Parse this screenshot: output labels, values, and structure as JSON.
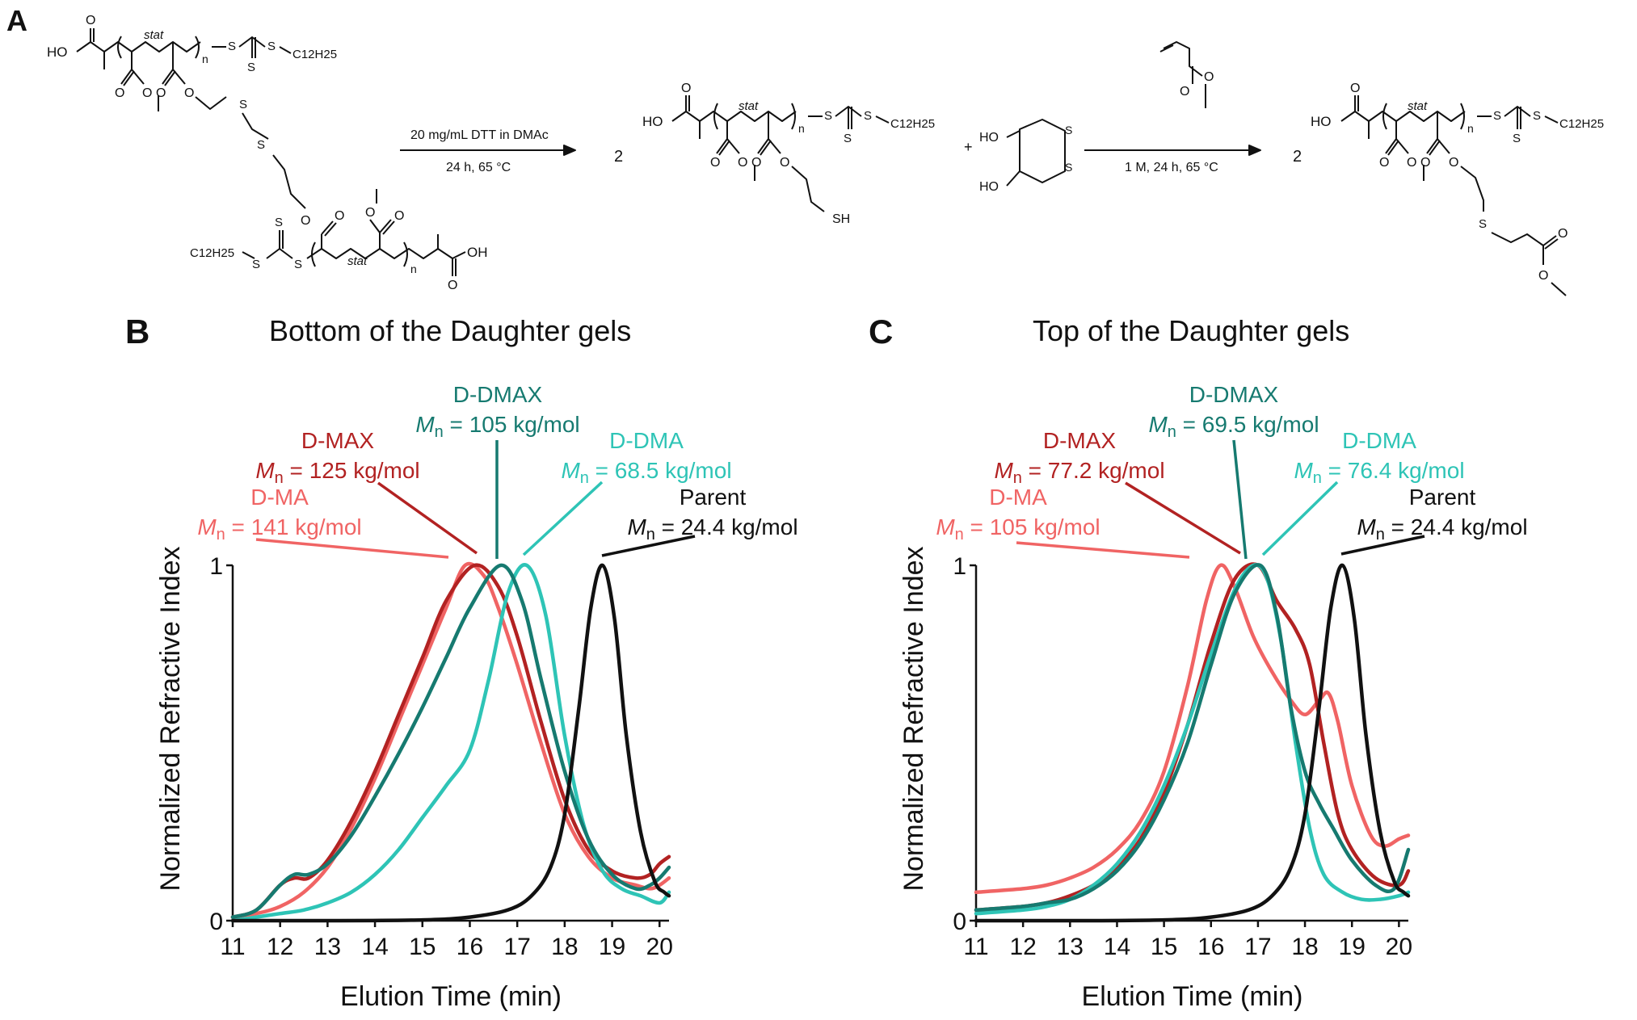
{
  "panel_a": {
    "letter": "A",
    "reaction1_reagent": "20 mg/mL DTT in DMAc",
    "reaction1_conditions": "24 h, 65 °C",
    "reaction2_conditions": "1 M, 24 h, 65 °C",
    "coefficient": "2",
    "plus": "+",
    "stat": "stat",
    "n": "n",
    "ho": "HO",
    "oh": "OH",
    "sh": "SH",
    "s": "S",
    "o": "O",
    "c12h25": "C12H25"
  },
  "chart_data": [
    {
      "type": "line",
      "panel": "B",
      "title": "Bottom of the Daughter gels",
      "xlabel": "Elution Time (min)",
      "ylabel": "Normalized Refractive Index",
      "xlim": [
        11,
        20.2
      ],
      "ylim": [
        0,
        1
      ],
      "xticks": [
        "11",
        "12",
        "13",
        "14",
        "15",
        "16",
        "17",
        "18",
        "19",
        "20"
      ],
      "yticks": [
        "0",
        "1"
      ],
      "series": [
        {
          "name": "D-MA",
          "color": "#f06464",
          "label_name": "D-MA",
          "label_mn": "M",
          "label_value": "= 141 kg/mol",
          "x": [
            11,
            11.5,
            12,
            12.5,
            13,
            13.5,
            14,
            14.5,
            15,
            15.5,
            15.9,
            16.3,
            16.6,
            17,
            17.5,
            18,
            18.5,
            19,
            19.5,
            19.8,
            20,
            20.2
          ],
          "y": [
            0.01,
            0.02,
            0.04,
            0.08,
            0.15,
            0.26,
            0.4,
            0.56,
            0.72,
            0.88,
            1.0,
            0.97,
            0.88,
            0.72,
            0.5,
            0.3,
            0.18,
            0.12,
            0.1,
            0.09,
            0.1,
            0.12
          ]
        },
        {
          "name": "D-MAX",
          "color": "#b22222",
          "label_name": "D-MAX",
          "label_mn": "M",
          "label_value": "= 125 kg/mol",
          "x": [
            11,
            11.5,
            12,
            12.3,
            12.6,
            13,
            13.5,
            14,
            14.5,
            15,
            15.5,
            16.1,
            16.6,
            17,
            17.5,
            18,
            18.5,
            19,
            19.5,
            19.8,
            20,
            20.2
          ],
          "y": [
            0.01,
            0.03,
            0.1,
            0.12,
            0.12,
            0.17,
            0.28,
            0.42,
            0.58,
            0.74,
            0.9,
            1.0,
            0.94,
            0.8,
            0.56,
            0.34,
            0.2,
            0.14,
            0.12,
            0.13,
            0.16,
            0.18
          ]
        },
        {
          "name": "D-DMAX",
          "color": "#167a70",
          "label_name": "D-DMAX",
          "label_mn": "M",
          "label_value": "= 105 kg/mol",
          "x": [
            11,
            11.5,
            12,
            12.3,
            12.6,
            13,
            13.5,
            14,
            14.5,
            15,
            15.5,
            16,
            16.65,
            17.1,
            17.5,
            18,
            18.5,
            19,
            19.5,
            19.8,
            20,
            20.2
          ],
          "y": [
            0.01,
            0.03,
            0.1,
            0.13,
            0.13,
            0.16,
            0.24,
            0.35,
            0.47,
            0.6,
            0.74,
            0.88,
            1.0,
            0.9,
            0.68,
            0.42,
            0.23,
            0.13,
            0.09,
            0.1,
            0.12,
            0.15
          ]
        },
        {
          "name": "D-DMA",
          "color": "#2ec4b6",
          "label_name": "D-DMA",
          "label_mn": "M",
          "label_value": "= 68.5 kg/mol",
          "x": [
            11,
            11.5,
            12,
            12.5,
            13,
            13.5,
            14,
            14.5,
            15,
            15.5,
            16,
            16.4,
            16.8,
            17.2,
            17.6,
            18,
            18.4,
            18.8,
            19.2,
            19.6,
            20,
            20.2
          ],
          "y": [
            0.0,
            0.01,
            0.02,
            0.03,
            0.05,
            0.08,
            0.13,
            0.2,
            0.29,
            0.38,
            0.48,
            0.68,
            0.92,
            1.0,
            0.86,
            0.52,
            0.27,
            0.14,
            0.09,
            0.07,
            0.05,
            0.08
          ]
        },
        {
          "name": "Parent",
          "color": "#111111",
          "label_name": "Parent",
          "label_mn": "M",
          "label_value": "= 24.4 kg/mol",
          "x": [
            11,
            13,
            15,
            16,
            16.8,
            17.3,
            17.7,
            18.0,
            18.3,
            18.55,
            18.8,
            19.05,
            19.3,
            19.6,
            19.9,
            20.1,
            20.2
          ],
          "y": [
            0,
            0,
            0.002,
            0.01,
            0.03,
            0.07,
            0.15,
            0.3,
            0.6,
            0.88,
            1.0,
            0.85,
            0.52,
            0.25,
            0.11,
            0.08,
            0.07
          ]
        }
      ]
    },
    {
      "type": "line",
      "panel": "C",
      "title": "Top of the Daughter gels",
      "xlabel": "Elution Time (min)",
      "ylabel": "Normalized Refractive Index",
      "xlim": [
        11,
        20.2
      ],
      "ylim": [
        0,
        1
      ],
      "xticks": [
        "11",
        "12",
        "13",
        "14",
        "15",
        "16",
        "17",
        "18",
        "19",
        "20"
      ],
      "yticks": [
        "0",
        "1"
      ],
      "series": [
        {
          "name": "D-MA",
          "color": "#f06464",
          "label_name": "D-MA",
          "label_mn": "M",
          "label_value": "= 105 kg/mol",
          "x": [
            11,
            12,
            12.5,
            13,
            13.5,
            14,
            14.5,
            15,
            15.5,
            15.9,
            16.2,
            16.5,
            16.9,
            17.3,
            17.7,
            18.0,
            18.3,
            18.5,
            18.7,
            19.0,
            19.4,
            19.7,
            20,
            20.2
          ],
          "y": [
            0.08,
            0.09,
            0.1,
            0.12,
            0.15,
            0.2,
            0.28,
            0.42,
            0.66,
            0.9,
            1.0,
            0.94,
            0.8,
            0.7,
            0.62,
            0.58,
            0.62,
            0.64,
            0.56,
            0.38,
            0.24,
            0.21,
            0.23,
            0.24
          ]
        },
        {
          "name": "D-MAX",
          "color": "#b22222",
          "label_name": "D-MAX",
          "label_mn": "M",
          "label_value": "= 77.2 kg/mol",
          "x": [
            11,
            12,
            12.5,
            13,
            13.5,
            14,
            14.5,
            15,
            15.5,
            16,
            16.5,
            17.0,
            17.4,
            17.8,
            18.1,
            18.4,
            18.7,
            19,
            19.5,
            20,
            20.2
          ],
          "y": [
            0.03,
            0.04,
            0.05,
            0.07,
            0.1,
            0.15,
            0.23,
            0.36,
            0.55,
            0.78,
            0.96,
            1.0,
            0.9,
            0.82,
            0.72,
            0.5,
            0.3,
            0.2,
            0.12,
            0.1,
            0.14
          ]
        },
        {
          "name": "D-DMAX",
          "color": "#167a70",
          "label_name": "D-DMAX",
          "label_mn": "M",
          "label_value": "= 69.5 kg/mol",
          "x": [
            11,
            12,
            12.5,
            13,
            13.5,
            14,
            14.5,
            15,
            15.5,
            16,
            16.5,
            17.05,
            17.4,
            17.7,
            18.0,
            18.3,
            18.6,
            19,
            19.5,
            19.9,
            20.2
          ],
          "y": [
            0.03,
            0.04,
            0.05,
            0.06,
            0.09,
            0.14,
            0.22,
            0.34,
            0.5,
            0.72,
            0.92,
            1.0,
            0.86,
            0.6,
            0.42,
            0.33,
            0.26,
            0.17,
            0.1,
            0.09,
            0.2
          ]
        },
        {
          "name": "D-DMA",
          "color": "#2ec4b6",
          "label_name": "D-DMA",
          "label_mn": "M",
          "label_value": "= 76.4 kg/mol",
          "x": [
            11,
            12,
            12.5,
            13,
            13.5,
            14,
            14.5,
            15,
            15.5,
            16,
            16.5,
            16.9,
            17.2,
            17.5,
            17.8,
            18.1,
            18.4,
            18.8,
            19.2,
            19.6,
            20,
            20.2
          ],
          "y": [
            0.02,
            0.03,
            0.04,
            0.06,
            0.1,
            0.16,
            0.25,
            0.38,
            0.55,
            0.75,
            0.93,
            1.0,
            0.96,
            0.78,
            0.5,
            0.26,
            0.13,
            0.08,
            0.06,
            0.06,
            0.07,
            0.08
          ]
        },
        {
          "name": "Parent",
          "color": "#111111",
          "label_name": "Parent",
          "label_mn": "M",
          "label_value": "= 24.4 kg/mol",
          "x": [
            11,
            13,
            15,
            16,
            16.8,
            17.3,
            17.7,
            18.0,
            18.3,
            18.55,
            18.8,
            19.05,
            19.3,
            19.6,
            19.9,
            20.1,
            20.2
          ],
          "y": [
            0,
            0,
            0.002,
            0.01,
            0.03,
            0.07,
            0.15,
            0.3,
            0.6,
            0.88,
            1.0,
            0.85,
            0.52,
            0.25,
            0.11,
            0.08,
            0.07
          ]
        }
      ]
    }
  ],
  "panel_letters": {
    "b": "B",
    "c": "C"
  }
}
